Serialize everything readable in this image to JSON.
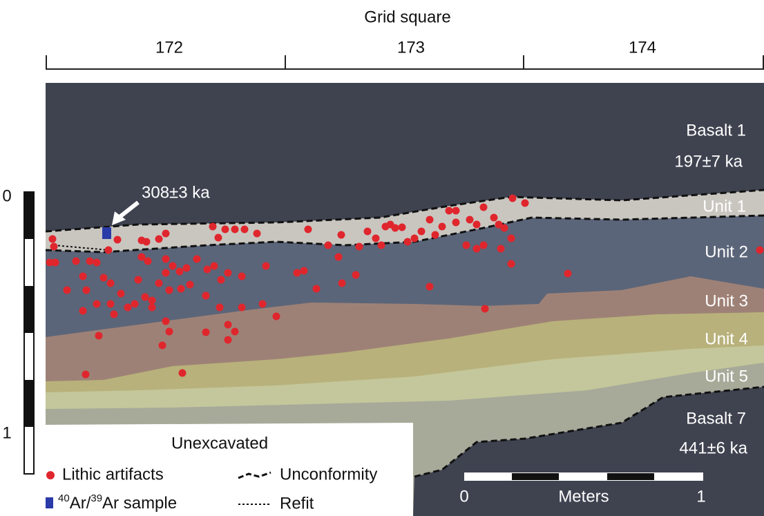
{
  "header": {
    "title": "Grid square",
    "squares": [
      "172",
      "173",
      "174"
    ]
  },
  "layers": {
    "basalt_1": {
      "label": "Basalt 1",
      "age": "197±7 ka"
    },
    "units": [
      "Unit 1",
      "Unit 2",
      "Unit 3",
      "Unit 4",
      "Unit 5"
    ],
    "basalt_7": {
      "label": "Basalt 7",
      "age": "441±6 ka"
    },
    "unexcavated": "Unexcavated"
  },
  "sample": {
    "age": "308±3 ka"
  },
  "depth_scale": [
    "0",
    "1"
  ],
  "legend": {
    "artifacts": "Lithic artifacts",
    "sample": [
      "40",
      "Ar/",
      "39",
      "Ar sample"
    ],
    "unconformity": "Unconformity",
    "refit": "Refit"
  },
  "scale_bar": {
    "start": "0",
    "unit": "Meters",
    "end": "1"
  }
}
